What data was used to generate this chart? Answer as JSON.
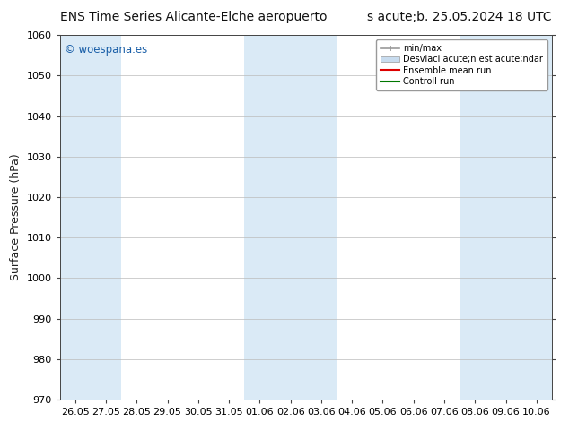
{
  "title_left": "ENS Time Series Alicante-Elche aeropuerto",
  "title_right": "s acute;b. 25.05.2024 18 UTC",
  "ylabel": "Surface Pressure (hPa)",
  "ylim": [
    970,
    1060
  ],
  "yticks": [
    970,
    980,
    990,
    1000,
    1010,
    1020,
    1030,
    1040,
    1050,
    1060
  ],
  "x_labels": [
    "26.05",
    "27.05",
    "28.05",
    "29.05",
    "30.05",
    "31.05",
    "01.06",
    "02.06",
    "03.06",
    "04.06",
    "05.06",
    "06.06",
    "07.06",
    "08.06",
    "09.06",
    "10.06"
  ],
  "background_color": "#ffffff",
  "band_color": "#daeaf6",
  "band_positions": [
    0,
    1,
    6,
    7,
    8,
    13,
    14,
    15
  ],
  "watermark": "© woespana.es",
  "watermark_color": "#1a5fa8",
  "grid_color": "#bbbbbb",
  "spine_color": "#444444",
  "title_fontsize": 10,
  "axis_label_fontsize": 9,
  "tick_fontsize": 8,
  "legend_minmax_color": "#999999",
  "legend_std_color": "#c8dcef",
  "legend_ens_color": "#dd0000",
  "legend_ctrl_color": "#007700"
}
